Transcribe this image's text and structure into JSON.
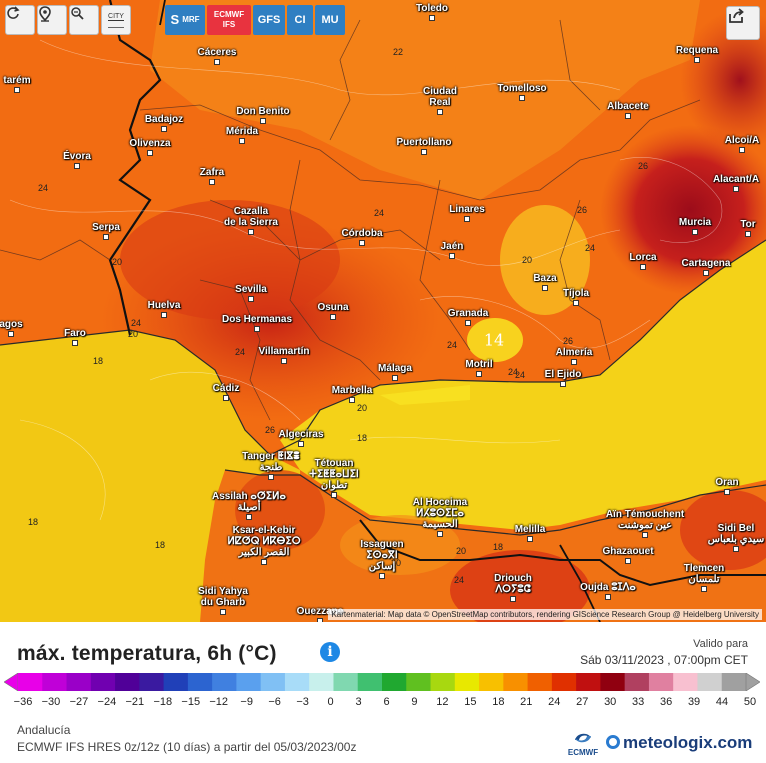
{
  "toolbar": {
    "reload_icon": "reload-icon",
    "location_icon": "location-pin-icon",
    "zoom_icon": "zoom-icon",
    "city_label": "CITY",
    "models": [
      {
        "id": "smrf",
        "label": "S",
        "sub": "MRF",
        "color": "#2f7fc2"
      },
      {
        "id": "ecmwf",
        "label": "ECMWF",
        "sub": "IFS",
        "color": "#e8333f"
      },
      {
        "id": "gfs",
        "label": "GFS",
        "sub": "",
        "color": "#2f7fc2"
      },
      {
        "id": "ci",
        "label": "CI",
        "sub": "",
        "color": "#2f7fc2"
      },
      {
        "id": "mu",
        "label": "MU",
        "sub": "",
        "color": "#2f7fc2"
      }
    ],
    "share_icon": "share-icon"
  },
  "map": {
    "attribution": "Kartenmaterial: Map data © OpenStreetMap contributors, rendering GIScience Research Group @ Heidelberg University",
    "cities": [
      {
        "name": "Toledo"
      },
      {
        "name": "Cáceres"
      },
      {
        "name": "Requena"
      },
      {
        "name": "tarém"
      },
      {
        "name": "Tomelloso"
      },
      {
        "name": "Ciudad\nReal"
      },
      {
        "name": "Don Benito"
      },
      {
        "name": "Badajoz"
      },
      {
        "name": "Albacete"
      },
      {
        "name": "Mérida"
      },
      {
        "name": "Alcoi/A"
      },
      {
        "name": "Puertollano"
      },
      {
        "name": "Olivenza"
      },
      {
        "name": "Évora"
      },
      {
        "name": "Zafra"
      },
      {
        "name": "Alacant/A"
      },
      {
        "name": "Linares"
      },
      {
        "name": "Cazalla\nde la Sierra"
      },
      {
        "name": "Serpa"
      },
      {
        "name": "Murcia"
      },
      {
        "name": "Tor"
      },
      {
        "name": "Córdoba"
      },
      {
        "name": "Jaén"
      },
      {
        "name": "Lorca"
      },
      {
        "name": "Cartagena"
      },
      {
        "name": "Sevilla"
      },
      {
        "name": "Baza"
      },
      {
        "name": "Huelva"
      },
      {
        "name": "Tíjola"
      },
      {
        "name": "agos"
      },
      {
        "name": "Osuna"
      },
      {
        "name": "Dos Hermanas"
      },
      {
        "name": "Granada"
      },
      {
        "name": "Faro"
      },
      {
        "name": "Almería"
      },
      {
        "name": "Villamartín"
      },
      {
        "name": "Motril"
      },
      {
        "name": "Málaga"
      },
      {
        "name": "El Ejido"
      },
      {
        "name": "Cádiz"
      },
      {
        "name": "Marbella"
      },
      {
        "name": "Algeciras"
      },
      {
        "name": "Tanger ⵟⵏⴵⴻ\nطنجة"
      },
      {
        "name": "Tétouan\nⵜⵉⵟⵟⴰⵡⵉⵏ\nتطوان"
      },
      {
        "name": "Oran"
      },
      {
        "name": "Assilah ⴰⵚⵉⵍⴰ\nأصيلة"
      },
      {
        "name": "Al Hoceima\nⵍⵃⵓⵙⵉⵎⴰ\nالحسيمة"
      },
      {
        "name": "Aïn Témouchent\nعين تموشنت"
      },
      {
        "name": "Sidi Bel\nسيدي بلعباس"
      },
      {
        "name": "Melilla"
      },
      {
        "name": "Ksar-el-Kebir\nⵍⵇⵚⵕ ⵍⴽⴱⵉⵔ\nالقصر الكبير"
      },
      {
        "name": "Issaguen\nⵉⵙⴰⴳⵏ\nإساكن"
      },
      {
        "name": "Ghazaouet"
      },
      {
        "name": "Tlemcen\nتلمسان"
      },
      {
        "name": "Driouch\nⴷⵔⵢⵓⵛ"
      },
      {
        "name": "Sidi Yahya\ndu Gharb"
      },
      {
        "name": "Oujda ⵓⵊⴷⴰ"
      },
      {
        "name": "Ouezzane"
      }
    ],
    "isolines": [
      "22",
      "24",
      "24",
      "26",
      "24",
      "26",
      "20",
      "20",
      "26",
      "24",
      "24",
      "20",
      "24",
      "14",
      "20",
      "26",
      "24",
      "20",
      "18",
      "18",
      "24",
      "20",
      "18",
      "18",
      "18",
      "24"
    ]
  },
  "legend": {
    "title": "máx. temperatura, 6h (°C)",
    "valid_label": "Valido para",
    "valid_date": "Sáb 03/11/2023 , 07:00pm CET",
    "ticks": [
      "-36",
      "-30",
      "-27",
      "-24",
      "-21",
      "-18",
      "-15",
      "-12",
      "-9",
      "-6",
      "-3",
      "0",
      "3",
      "6",
      "9",
      "12",
      "15",
      "18",
      "21",
      "24",
      "27",
      "30",
      "33",
      "36",
      "39",
      "44",
      "50"
    ],
    "colors": [
      "#e800e8",
      "#c000d8",
      "#9a00c8",
      "#7000b0",
      "#500098",
      "#3a1aa0",
      "#2040b8",
      "#2c64d0",
      "#4080e0",
      "#5aa0ee",
      "#80c0f4",
      "#a8dcf8",
      "#c8f0ec",
      "#80d8b0",
      "#40c070",
      "#20a830",
      "#60c020",
      "#a8d810",
      "#e8e800",
      "#f8c000",
      "#f89000",
      "#f06000",
      "#e03000",
      "#c01010",
      "#900010",
      "#b04060",
      "#e080a0",
      "#f8c0d0",
      "#d0d0d0",
      "#a0a0a0"
    ],
    "region": "Andalucía",
    "model_desc": "ECMWF IFS HRES 0z/12z (10 días) a partir del 05/03/2023/00z",
    "ecmwf_logo_text": "ECMWF",
    "brand": "meteologix.com"
  }
}
